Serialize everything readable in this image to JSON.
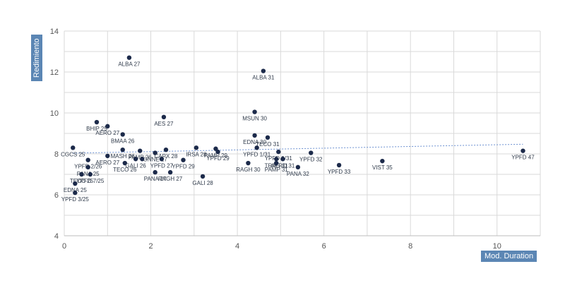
{
  "chart_data": {
    "type": "scatter",
    "title": "",
    "xlabel": "Mod. Duration",
    "ylabel": "Redimiento",
    "xlim": [
      0,
      11
    ],
    "ylim": [
      4,
      14
    ],
    "xticks": [
      "0",
      "2",
      "4",
      "6",
      "8",
      "10"
    ],
    "yticks": [
      "4",
      "6",
      "8",
      "10",
      "12",
      "14"
    ],
    "grid": true,
    "trendline": "linear",
    "colors": {
      "point": "#1c2a4a",
      "grid": "#d9d9d9",
      "trend": "#6a8fd0",
      "axis_label_bg": "#5b86b4"
    },
    "points": [
      {
        "label": "ALBA 27",
        "x": 1.5,
        "y": 12.7
      },
      {
        "label": "ALBA 31",
        "x": 4.6,
        "y": 12.05
      },
      {
        "label": "MSUN 30",
        "x": 4.4,
        "y": 10.05
      },
      {
        "label": "EDNA 30",
        "x": 4.4,
        "y": 8.9
      },
      {
        "label": "TECO 31",
        "x": 4.7,
        "y": 8.8
      },
      {
        "label": "YPFD 1/31",
        "x": 4.45,
        "y": 8.3
      },
      {
        "label": "YPFD 9/31",
        "x": 4.95,
        "y": 8.1
      },
      {
        "label": "YPFD 32",
        "x": 5.7,
        "y": 8.05
      },
      {
        "label": "RAGH 30",
        "x": 4.25,
        "y": 7.55
      },
      {
        "label": "PANA 32",
        "x": 5.4,
        "y": 7.35
      },
      {
        "label": "TRAG 31",
        "x": 4.9,
        "y": 7.75
      },
      {
        "label": "AERO 31",
        "x": 5.05,
        "y": 7.75
      },
      {
        "label": "PAMP 31",
        "x": 4.9,
        "y": 7.55
      },
      {
        "label": "YPFD 33",
        "x": 6.35,
        "y": 7.45
      },
      {
        "label": "VIST 35",
        "x": 7.35,
        "y": 7.65
      },
      {
        "label": "YPFD 47",
        "x": 10.6,
        "y": 8.15
      },
      {
        "label": "BHIP 25",
        "x": 0.75,
        "y": 9.55
      },
      {
        "label": "AERO 27",
        "x": 1.0,
        "y": 9.35
      },
      {
        "label": "BMAA 26",
        "x": 1.35,
        "y": 8.95
      },
      {
        "label": "CGCS 25",
        "x": 0.2,
        "y": 8.3
      },
      {
        "label": "MASH 26",
        "x": 1.35,
        "y": 8.2
      },
      {
        "label": "PAMP 26",
        "x": 1.75,
        "y": 8.15
      },
      {
        "label": "AERO 27",
        "x": 1.0,
        "y": 7.9
      },
      {
        "label": "YPFD 2/26",
        "x": 0.55,
        "y": 7.7
      },
      {
        "label": "PANA 25",
        "x": 0.55,
        "y": 7.35
      },
      {
        "label": "YPFD 7/25",
        "x": 0.6,
        "y": 7.0
      },
      {
        "label": "TECO 26",
        "x": 1.4,
        "y": 7.55
      },
      {
        "label": "TECO 25",
        "x": 0.4,
        "y": 7.0
      },
      {
        "label": "EDNA 25",
        "x": 0.25,
        "y": 6.55
      },
      {
        "label": "YPFD 3/25",
        "x": 0.25,
        "y": 6.1
      },
      {
        "label": "GALI 26",
        "x": 1.65,
        "y": 7.75
      },
      {
        "label": "AES 27",
        "x": 2.3,
        "y": 9.8
      },
      {
        "label": "GNNE 27",
        "x": 2.1,
        "y": 8.05
      },
      {
        "label": "CAPX 28",
        "x": 2.35,
        "y": 8.2
      },
      {
        "label": "PAMP 29",
        "x": 3.5,
        "y": 8.25
      },
      {
        "label": "YPFD 29",
        "x": 3.55,
        "y": 8.1
      },
      {
        "label": "YPFD 27",
        "x": 2.25,
        "y": 7.75
      },
      {
        "label": "YPFD 29",
        "x": 2.75,
        "y": 7.7
      },
      {
        "label": "IRSA 28",
        "x": 3.05,
        "y": 8.3
      },
      {
        "label": "PANA 27",
        "x": 2.1,
        "y": 7.1
      },
      {
        "label": "RAGH 27",
        "x": 2.45,
        "y": 7.1
      },
      {
        "label": "GALI 28",
        "x": 3.2,
        "y": 6.9
      },
      {
        "label": "",
        "x": 1.8,
        "y": 7.75
      }
    ]
  }
}
